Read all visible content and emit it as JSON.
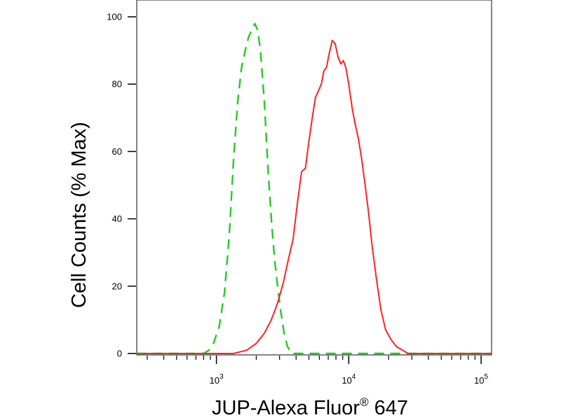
{
  "chart_data": {
    "type": "line",
    "title": "",
    "xlabel": "JUP-Alexa Fluor",
    "xlabel_superscript": "®",
    "xlabel_suffix": " 647",
    "ylabel": "Cell Counts (% Max)",
    "x_scale": "log",
    "xlim": [
      250,
      120000
    ],
    "ylim": [
      0,
      105
    ],
    "y_ticks": [
      0,
      20,
      40,
      60,
      80,
      100
    ],
    "y_tick_labels": [
      "0",
      "20",
      "40",
      "60",
      "80",
      "100"
    ],
    "x_major_ticks": [
      {
        "value": 1000,
        "base": "10",
        "exp": "3"
      },
      {
        "value": 10000,
        "base": "10",
        "exp": "4"
      },
      {
        "value": 100000,
        "base": "10",
        "exp": "5"
      }
    ],
    "grid": false,
    "legend": "none",
    "series": [
      {
        "color": "#22cc22",
        "style": "dashed",
        "points": [
          [
            250,
            0
          ],
          [
            800,
            0
          ],
          [
            880,
            1
          ],
          [
            950,
            3
          ],
          [
            1050,
            8
          ],
          [
            1150,
            18
          ],
          [
            1250,
            35
          ],
          [
            1350,
            58
          ],
          [
            1450,
            75
          ],
          [
            1550,
            85
          ],
          [
            1650,
            90
          ],
          [
            1750,
            94
          ],
          [
            1850,
            96
          ],
          [
            1950,
            98
          ],
          [
            2050,
            96
          ],
          [
            2150,
            90
          ],
          [
            2300,
            75
          ],
          [
            2450,
            55
          ],
          [
            2600,
            40
          ],
          [
            2750,
            28
          ],
          [
            2900,
            20
          ],
          [
            3050,
            13
          ],
          [
            3250,
            6
          ],
          [
            3450,
            2
          ],
          [
            3700,
            0
          ],
          [
            120000,
            0
          ]
        ]
      },
      {
        "color": "#ff2222",
        "style": "solid",
        "points": [
          [
            250,
            0
          ],
          [
            1350,
            0
          ],
          [
            1700,
            1
          ],
          [
            2000,
            3
          ],
          [
            2300,
            6
          ],
          [
            2600,
            10
          ],
          [
            2900,
            15
          ],
          [
            3200,
            21
          ],
          [
            3500,
            28
          ],
          [
            3800,
            34
          ],
          [
            4100,
            45
          ],
          [
            4400,
            54
          ],
          [
            4700,
            55
          ],
          [
            5000,
            63
          ],
          [
            5300,
            70
          ],
          [
            5600,
            76
          ],
          [
            5900,
            78
          ],
          [
            6200,
            80
          ],
          [
            6500,
            84
          ],
          [
            6800,
            85
          ],
          [
            7100,
            89
          ],
          [
            7500,
            93
          ],
          [
            7900,
            92
          ],
          [
            8300,
            88
          ],
          [
            8700,
            86
          ],
          [
            9100,
            87
          ],
          [
            9500,
            85
          ],
          [
            10000,
            80
          ],
          [
            10600,
            73
          ],
          [
            11200,
            68
          ],
          [
            11800,
            64
          ],
          [
            12500,
            58
          ],
          [
            13300,
            50
          ],
          [
            14100,
            42
          ],
          [
            15000,
            32
          ],
          [
            16200,
            22
          ],
          [
            17500,
            13
          ],
          [
            19000,
            7
          ],
          [
            21000,
            4
          ],
          [
            23000,
            2
          ],
          [
            25500,
            1
          ],
          [
            28000,
            0
          ],
          [
            120000,
            0
          ]
        ]
      }
    ]
  }
}
